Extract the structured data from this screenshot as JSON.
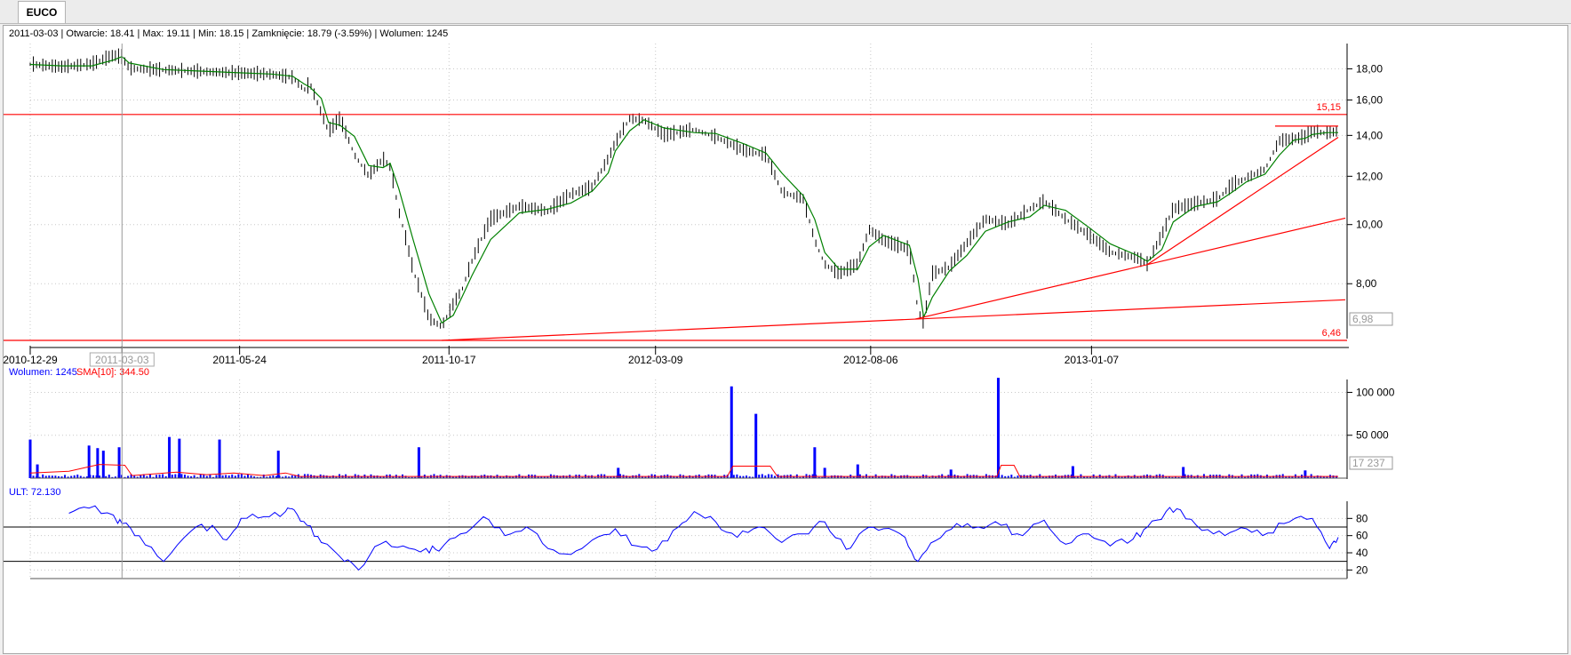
{
  "tab": {
    "label": "EUCO"
  },
  "info": {
    "text": "2011-03-03 | Otwarcie: 18.41 | Max: 19.11 | Min: 18.15 | Zamknięcie: 18.79 (-3.59%)  | Wolumen: 1245"
  },
  "colors": {
    "price": "#000000",
    "sma": "#008000",
    "trend": "#ff0000",
    "volume": "#0000ff",
    "ult": "#0000ff",
    "grid": "#c8c8c8"
  },
  "chart_data": [
    {
      "type": "line",
      "panel": "price",
      "scale": "log",
      "ylim": [
        6.46,
        19.8
      ],
      "yticks": [
        {
          "v": 8,
          "label": "8,00"
        },
        {
          "v": 10,
          "label": "10,00"
        },
        {
          "v": 12,
          "label": "12,00"
        },
        {
          "v": 14,
          "label": "14,00"
        },
        {
          "v": 16,
          "label": "16,00"
        },
        {
          "v": 18,
          "label": "18,00"
        }
      ],
      "x_labels": [
        {
          "date": "2010-12-29",
          "label": "2010-12-29"
        },
        {
          "date": "2011-03-03",
          "label": "2011-03-03",
          "boxed": true
        },
        {
          "date": "2011-05-24",
          "label": "2011-05-24"
        },
        {
          "date": "2011-10-17",
          "label": "2011-10-17"
        },
        {
          "date": "2012-03-09",
          "label": "2012-03-09"
        },
        {
          "date": "2012-08-06",
          "label": "2012-08-06"
        },
        {
          "date": "2013-01-07",
          "label": "2013-01-07"
        }
      ],
      "cursor_date": "2011-03-03",
      "x_start": "2010-12-29",
      "x_end": "2013-06-28",
      "price_path": [
        [
          "2010-12-29",
          18.3
        ],
        [
          "2011-01-20",
          18.1
        ],
        [
          "2011-02-10",
          18.3
        ],
        [
          "2011-02-25",
          18.9
        ],
        [
          "2011-03-03",
          18.8
        ],
        [
          "2011-03-08",
          18.0
        ],
        [
          "2011-04-01",
          17.9
        ],
        [
          "2011-04-25",
          17.8
        ],
        [
          "2011-05-20",
          17.7
        ],
        [
          "2011-06-15",
          17.6
        ],
        [
          "2011-06-30",
          17.4
        ],
        [
          "2011-07-08",
          16.6
        ],
        [
          "2011-07-12",
          17.0
        ],
        [
          "2011-07-20",
          15.2
        ],
        [
          "2011-07-25",
          14.2
        ],
        [
          "2011-08-02",
          14.9
        ],
        [
          "2011-08-12",
          13.0
        ],
        [
          "2011-08-22",
          12.0
        ],
        [
          "2011-09-01",
          12.8
        ],
        [
          "2011-09-06",
          12.4
        ],
        [
          "2011-09-12",
          10.5
        ],
        [
          "2011-09-22",
          8.4
        ],
        [
          "2011-10-03",
          7.0
        ],
        [
          "2011-10-12",
          6.8
        ],
        [
          "2011-10-20",
          7.4
        ],
        [
          "2011-10-26",
          7.8
        ],
        [
          "2011-11-02",
          8.7
        ],
        [
          "2011-11-15",
          10.2
        ],
        [
          "2011-12-05",
          10.7
        ],
        [
          "2011-12-25",
          10.5
        ],
        [
          "2012-01-10",
          11.2
        ],
        [
          "2012-01-25",
          11.5
        ],
        [
          "2012-02-05",
          12.8
        ],
        [
          "2012-02-10",
          13.6
        ],
        [
          "2012-02-20",
          14.9
        ],
        [
          "2012-03-01",
          14.8
        ],
        [
          "2012-03-15",
          14.0
        ],
        [
          "2012-04-05",
          14.3
        ],
        [
          "2012-04-20",
          13.9
        ],
        [
          "2012-05-10",
          13.2
        ],
        [
          "2012-05-25",
          13.0
        ],
        [
          "2012-06-05",
          11.3
        ],
        [
          "2012-06-20",
          11.0
        ],
        [
          "2012-06-28",
          9.4
        ],
        [
          "2012-07-05",
          8.6
        ],
        [
          "2012-07-15",
          8.3
        ],
        [
          "2012-07-28",
          8.6
        ],
        [
          "2012-08-05",
          9.8
        ],
        [
          "2012-08-15",
          9.4
        ],
        [
          "2012-09-02",
          9.1
        ],
        [
          "2012-09-08",
          7.2
        ],
        [
          "2012-09-12",
          6.9
        ],
        [
          "2012-09-18",
          8.3
        ],
        [
          "2012-09-30",
          8.5
        ],
        [
          "2012-10-12",
          9.3
        ],
        [
          "2012-10-25",
          10.2
        ],
        [
          "2012-11-10",
          10.0
        ],
        [
          "2012-11-25",
          10.6
        ],
        [
          "2012-12-05",
          10.9
        ],
        [
          "2012-12-20",
          10.2
        ],
        [
          "2013-01-05",
          9.6
        ],
        [
          "2013-01-20",
          9.0
        ],
        [
          "2013-02-08",
          8.8
        ],
        [
          "2013-02-15",
          8.6
        ],
        [
          "2013-02-25",
          9.6
        ],
        [
          "2013-03-05",
          10.6
        ],
        [
          "2013-03-20",
          10.8
        ],
        [
          "2013-04-05",
          11.0
        ],
        [
          "2013-04-15",
          11.6
        ],
        [
          "2013-04-25",
          11.9
        ],
        [
          "2013-05-08",
          12.3
        ],
        [
          "2013-05-18",
          13.7
        ],
        [
          "2013-05-28",
          13.8
        ],
        [
          "2013-06-05",
          13.9
        ],
        [
          "2013-06-10",
          14.2
        ],
        [
          "2013-06-20",
          14.1
        ],
        [
          "2013-06-28",
          14.2
        ]
      ],
      "hlines": [
        {
          "v": 15.15,
          "label": "15,15"
        },
        {
          "v": 6.46,
          "label": "6,46"
        }
      ],
      "resistance_segment": {
        "from": "2013-05-15",
        "to": "2013-06-28",
        "v": 14.5
      },
      "trendlines": [
        {
          "from": [
            "2011-10-12",
            6.46
          ],
          "to": [
            "2012-09-06",
            7.0
          ],
          "extend": true
        },
        {
          "from": [
            "2012-09-06",
            7.0
          ],
          "to": [
            "2013-02-15",
            8.6
          ],
          "extend": true
        },
        {
          "from": [
            "2013-02-15",
            8.6
          ],
          "to": [
            "2013-06-28",
            13.9
          ],
          "extend": false
        }
      ],
      "last_value_box": "6,98"
    },
    {
      "type": "bar",
      "panel": "volume",
      "legend": [
        {
          "text": "Wolumen: 1245",
          "color": "#0000ff"
        },
        {
          "text": "SMA[10]: 344.50",
          "color": "#ff0000"
        }
      ],
      "ylim": [
        0,
        115000
      ],
      "yticks": [
        {
          "v": 50000,
          "label": "50 000"
        },
        {
          "v": 100000,
          "label": "100 000"
        }
      ],
      "spikes": [
        [
          "2010-12-29",
          45000
        ],
        [
          "2011-01-03",
          16000
        ],
        [
          "2011-02-08",
          38000
        ],
        [
          "2011-02-14",
          35000
        ],
        [
          "2011-02-18",
          32000
        ],
        [
          "2011-03-01",
          36000
        ],
        [
          "2011-04-05",
          48000
        ],
        [
          "2011-04-12",
          46000
        ],
        [
          "2011-05-10",
          45000
        ],
        [
          "2011-06-20",
          32000
        ],
        [
          "2011-09-26",
          36000
        ],
        [
          "2012-02-12",
          12000
        ],
        [
          "2012-05-01",
          107000
        ],
        [
          "2012-05-18",
          75000
        ],
        [
          "2012-06-28",
          36000
        ],
        [
          "2012-07-05",
          12000
        ],
        [
          "2012-07-28",
          16000
        ],
        [
          "2012-10-01",
          10000
        ],
        [
          "2012-11-03",
          117000
        ],
        [
          "2012-12-25",
          14000
        ],
        [
          "2013-03-12",
          13000
        ],
        [
          "2013-06-05",
          9000
        ]
      ],
      "base_level": 3000,
      "sma_path": [
        [
          "2010-12-29",
          6000
        ],
        [
          "2011-01-25",
          8000
        ],
        [
          "2011-02-15",
          16000
        ],
        [
          "2011-03-05",
          15000
        ],
        [
          "2011-03-10",
          3000
        ],
        [
          "2011-04-10",
          7000
        ],
        [
          "2011-05-01",
          4000
        ],
        [
          "2011-05-20",
          6000
        ],
        [
          "2011-06-10",
          3000
        ],
        [
          "2011-06-25",
          6000
        ],
        [
          "2011-07-05",
          2000
        ],
        [
          "2012-04-28",
          2000
        ],
        [
          "2012-05-02",
          14000
        ],
        [
          "2012-05-28",
          14000
        ],
        [
          "2012-06-02",
          2000
        ],
        [
          "2012-11-02",
          2000
        ],
        [
          "2012-11-05",
          15000
        ],
        [
          "2012-11-14",
          15000
        ],
        [
          "2012-11-18",
          2000
        ],
        [
          "2013-06-28",
          2000
        ]
      ],
      "last_value_box": "17 237"
    },
    {
      "type": "line",
      "panel": "ULT",
      "legend": "ULT: 72.130",
      "ylim": [
        10,
        100
      ],
      "yticks": [
        {
          "v": 20,
          "label": "20"
        },
        {
          "v": 40,
          "label": "40"
        },
        {
          "v": 60,
          "label": "60"
        },
        {
          "v": 80,
          "label": "80"
        }
      ],
      "hlines": [
        70,
        30
      ],
      "values": [
        [
          "2011-01-25",
          86
        ],
        [
          "2011-02-08",
          92
        ],
        [
          "2011-02-25",
          84
        ],
        [
          "2011-03-03",
          74
        ],
        [
          "2011-03-15",
          60
        ],
        [
          "2011-04-01",
          30
        ],
        [
          "2011-04-20",
          65
        ],
        [
          "2011-05-05",
          72
        ],
        [
          "2011-05-15",
          55
        ],
        [
          "2011-05-25",
          80
        ],
        [
          "2011-06-10",
          82
        ],
        [
          "2011-06-25",
          88
        ],
        [
          "2011-07-01",
          90
        ],
        [
          "2011-07-10",
          72
        ],
        [
          "2011-07-20",
          52
        ],
        [
          "2011-08-05",
          30
        ],
        [
          "2011-08-15",
          20
        ],
        [
          "2011-08-30",
          50
        ],
        [
          "2011-09-15",
          48
        ],
        [
          "2011-10-01",
          45
        ],
        [
          "2011-10-10",
          42
        ],
        [
          "2011-10-25",
          62
        ],
        [
          "2011-11-10",
          82
        ],
        [
          "2011-11-25",
          60
        ],
        [
          "2011-12-10",
          70
        ],
        [
          "2011-12-25",
          45
        ],
        [
          "2012-01-10",
          38
        ],
        [
          "2012-01-25",
          55
        ],
        [
          "2012-02-10",
          68
        ],
        [
          "2012-02-25",
          48
        ],
        [
          "2012-03-10",
          44
        ],
        [
          "2012-03-25",
          70
        ],
        [
          "2012-04-05",
          88
        ],
        [
          "2012-04-20",
          76
        ],
        [
          "2012-05-05",
          58
        ],
        [
          "2012-05-20",
          70
        ],
        [
          "2012-06-05",
          52
        ],
        [
          "2012-06-20",
          62
        ],
        [
          "2012-07-05",
          76
        ],
        [
          "2012-07-20",
          44
        ],
        [
          "2012-08-01",
          66
        ],
        [
          "2012-08-15",
          68
        ],
        [
          "2012-08-30",
          58
        ],
        [
          "2012-09-08",
          30
        ],
        [
          "2012-09-20",
          54
        ],
        [
          "2012-10-05",
          74
        ],
        [
          "2012-10-20",
          70
        ],
        [
          "2012-11-05",
          72
        ],
        [
          "2012-11-20",
          60
        ],
        [
          "2012-12-05",
          78
        ],
        [
          "2012-12-20",
          50
        ],
        [
          "2013-01-05",
          62
        ],
        [
          "2013-01-20",
          48
        ],
        [
          "2013-02-05",
          56
        ],
        [
          "2013-02-15",
          70
        ],
        [
          "2013-02-28",
          88
        ],
        [
          "2013-03-10",
          90
        ],
        [
          "2013-03-25",
          66
        ],
        [
          "2013-04-10",
          60
        ],
        [
          "2013-04-25",
          68
        ],
        [
          "2013-05-10",
          63
        ],
        [
          "2013-05-25",
          76
        ],
        [
          "2013-06-10",
          80
        ],
        [
          "2013-06-22",
          45
        ],
        [
          "2013-06-28",
          58
        ]
      ]
    }
  ]
}
